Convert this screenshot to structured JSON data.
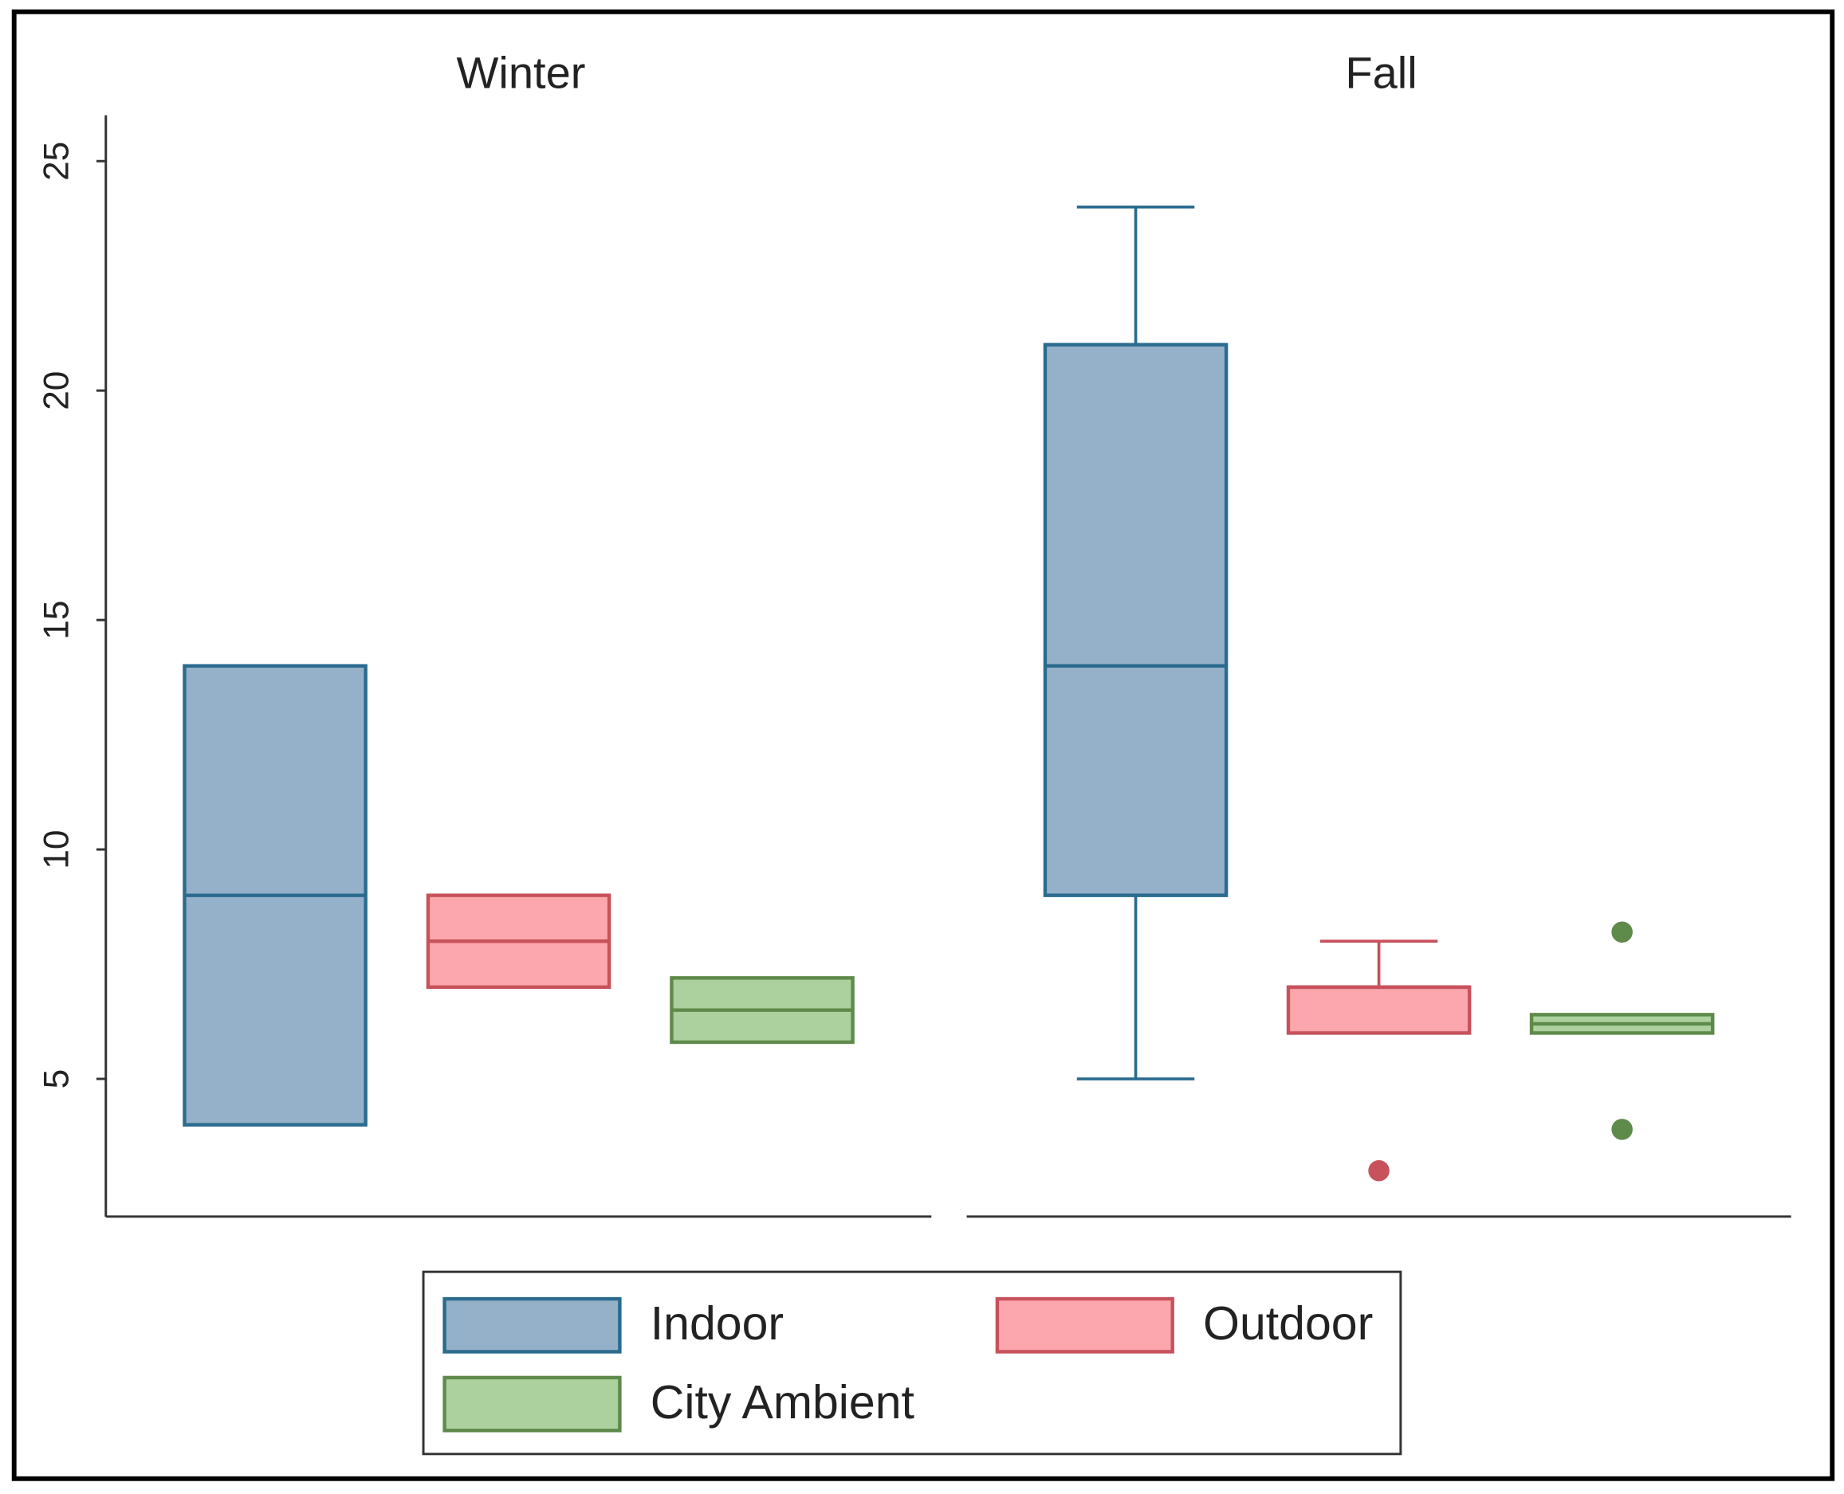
{
  "chart_data": {
    "type": "box",
    "panels": [
      "Winter",
      "Fall"
    ],
    "series": [
      {
        "name": "Indoor",
        "color": "#95b1c9",
        "stroke": "#2a6b8f",
        "boxes": [
          {
            "min": 4,
            "q1": 4,
            "median": 9,
            "q3": 14,
            "max": 14,
            "outliers": []
          },
          {
            "min": 5,
            "q1": 9,
            "median": 14,
            "q3": 21,
            "max": 24,
            "outliers": []
          }
        ]
      },
      {
        "name": "Outdoor",
        "color": "#fca7ad",
        "stroke": "#c7525b",
        "boxes": [
          {
            "min": 7,
            "q1": 7,
            "median": 8,
            "q3": 9,
            "max": 9,
            "outliers": []
          },
          {
            "min": 6,
            "q1": 6,
            "median": 7,
            "q3": 7,
            "max": 8,
            "outliers": [
              3
            ]
          }
        ]
      },
      {
        "name": "City Ambient",
        "color": "#add09f",
        "stroke": "#5e8a4a",
        "boxes": [
          {
            "min": 5.8,
            "q1": 5.8,
            "median": 6.5,
            "q3": 7.2,
            "max": 7.2,
            "outliers": []
          },
          {
            "min": 6,
            "q1": 6,
            "median": 6.2,
            "q3": 6.4,
            "max": 6.4,
            "outliers": [
              8.2,
              3.9
            ]
          }
        ]
      }
    ],
    "ylim": [
      2,
      26
    ],
    "yticks": [
      5,
      10,
      15,
      20,
      25
    ],
    "legend": "bottom"
  }
}
